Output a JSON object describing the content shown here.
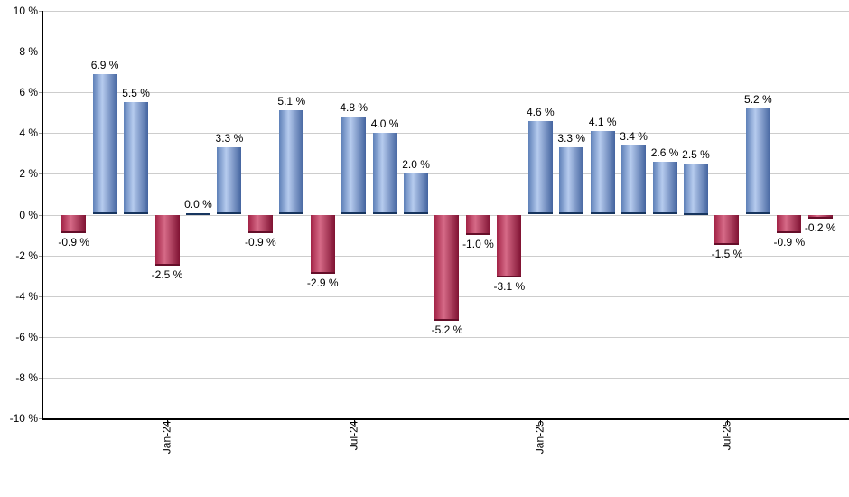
{
  "chart_data": {
    "type": "bar",
    "title": "",
    "values": [
      -0.9,
      6.9,
      5.5,
      -2.5,
      0.0,
      3.3,
      -0.9,
      5.1,
      -2.9,
      4.8,
      4.0,
      2.0,
      -5.2,
      -1.0,
      -3.1,
      4.6,
      3.3,
      4.1,
      3.4,
      2.6,
      2.5,
      -1.5,
      5.2,
      -0.9,
      -0.2
    ],
    "bar_value_labels": [
      "-0.9 %",
      "6.9 %",
      "5.5 %",
      "-2.5 %",
      "0.0 %",
      "3.3 %",
      "-0.9 %",
      "5.1 %",
      "-2.9 %",
      "4.8 %",
      "4.0 %",
      "2.0 %",
      "-5.2 %",
      "-1.0 %",
      "-3.1 %",
      "4.6 %",
      "3.3 %",
      "4.1 %",
      "3.4 %",
      "2.6 %",
      "2.5 %",
      "-1.5 %",
      "5.2 %",
      "-0.9 %",
      "-0.2 %"
    ],
    "x_ticks": [
      {
        "label": "Jan-24",
        "index": 3
      },
      {
        "label": "Jul-24",
        "index": 9
      },
      {
        "label": "Jan-25",
        "index": 15
      },
      {
        "label": "Jul-25",
        "index": 21
      }
    ],
    "y_ticks": [
      {
        "value": 10,
        "label": "10 %"
      },
      {
        "value": 8,
        "label": "8 %"
      },
      {
        "value": 6,
        "label": "6 %"
      },
      {
        "value": 4,
        "label": "4 %"
      },
      {
        "value": 2,
        "label": "2 %"
      },
      {
        "value": 0,
        "label": "0 %"
      },
      {
        "value": -2,
        "label": "-2 %"
      },
      {
        "value": -4,
        "label": "-4 %"
      },
      {
        "value": -6,
        "label": "-6 %"
      },
      {
        "value": -8,
        "label": "-8 %"
      },
      {
        "value": -10,
        "label": "-10 %"
      }
    ],
    "ylim": [
      -10,
      10
    ],
    "xlabel": "",
    "ylabel": "",
    "legend": "none",
    "grid": "horizontal",
    "colors": {
      "positive_bar_left": "#5e80b8",
      "positive_bar_center": "#b6cbee",
      "positive_bar_right": "#44649f",
      "positive_bar_cap": "#17355f",
      "negative_bar_left": "#a22346",
      "negative_bar_center": "#d66a87",
      "negative_bar_right": "#7f1232",
      "negative_bar_cap": "#650e29",
      "gridline": "#cdcdcd",
      "axis": "#000000",
      "text": "#000000",
      "background": "#ffffff"
    }
  }
}
